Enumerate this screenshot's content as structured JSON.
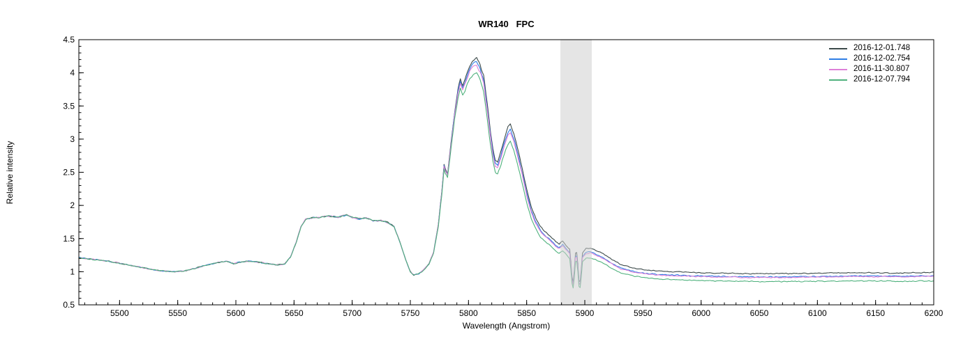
{
  "chart_data": {
    "type": "line",
    "title": "WR140   FPC",
    "xlabel": "Wavelength (Angstrom)",
    "ylabel": "Relative intensity",
    "xlim": [
      5465,
      6200
    ],
    "ylim": [
      0.5,
      4.5
    ],
    "grid": false,
    "legend_position": "top-right",
    "x_ticks": {
      "major_values": [
        5500,
        5550,
        5600,
        5650,
        5700,
        5750,
        5800,
        5850,
        5900,
        5950,
        6000,
        6050,
        6100,
        6150,
        6200
      ],
      "major_labels": [
        "5500",
        "5550",
        "5600",
        "5650",
        "5700",
        "5750",
        "5800",
        "5850",
        "5900",
        "5950",
        "6000",
        "6050",
        "6100",
        "6150",
        "6200"
      ],
      "minor_step": 10
    },
    "y_ticks": {
      "major_values": [
        0.5,
        1,
        1.5,
        2,
        2.5,
        3,
        3.5,
        4,
        4.5
      ],
      "major_labels": [
        "0.5",
        "1",
        "1.5",
        "2",
        "2.5",
        "3",
        "3.5",
        "4",
        "4.5"
      ],
      "minor_step": 0.1
    },
    "shaded_band": {
      "x0": 5879,
      "x1": 5906,
      "color": "rgba(208,208,208,0.55)",
      "note": "telluric Na D region overlay"
    },
    "frame_color": "#000000",
    "background_color": "#ffffff",
    "base_profile": [
      [
        5465,
        1.21
      ],
      [
        5475,
        1.19
      ],
      [
        5490,
        1.16
      ],
      [
        5505,
        1.11
      ],
      [
        5520,
        1.06
      ],
      [
        5532,
        1.02
      ],
      [
        5545,
        1.0
      ],
      [
        5555,
        1.01
      ],
      [
        5565,
        1.05
      ],
      [
        5575,
        1.1
      ],
      [
        5585,
        1.14
      ],
      [
        5592,
        1.16
      ],
      [
        5598,
        1.12
      ],
      [
        5603,
        1.14
      ],
      [
        5610,
        1.16
      ],
      [
        5618,
        1.15
      ],
      [
        5628,
        1.12
      ],
      [
        5636,
        1.1
      ],
      [
        5642,
        1.12
      ],
      [
        5647,
        1.22
      ],
      [
        5652,
        1.45
      ],
      [
        5656,
        1.68
      ],
      [
        5660,
        1.79
      ],
      [
        5665,
        1.81
      ],
      [
        5672,
        1.82
      ],
      [
        5680,
        1.84
      ],
      [
        5688,
        1.82
      ],
      [
        5695,
        1.86
      ],
      [
        5700,
        1.82
      ],
      [
        5706,
        1.8
      ],
      [
        5712,
        1.81
      ],
      [
        5718,
        1.77
      ],
      [
        5725,
        1.77
      ],
      [
        5731,
        1.74
      ],
      [
        5736,
        1.68
      ],
      [
        5741,
        1.45
      ],
      [
        5746,
        1.18
      ],
      [
        5750,
        1.0
      ],
      [
        5753,
        0.95
      ],
      [
        5757,
        0.97
      ],
      [
        5761,
        1.02
      ],
      [
        5766,
        1.12
      ],
      [
        5770,
        1.3
      ],
      [
        5774,
        1.7
      ],
      [
        5777,
        2.2
      ],
      [
        5779,
        2.62
      ],
      [
        5780,
        2.55
      ],
      [
        5782,
        2.48
      ],
      [
        5785,
        2.95
      ],
      [
        5788,
        3.4
      ],
      [
        5791,
        3.75
      ],
      [
        5793,
        3.9
      ],
      [
        5795,
        3.8
      ],
      [
        5798,
        3.95
      ],
      [
        5801,
        4.1
      ],
      [
        5804,
        4.18
      ],
      [
        5807,
        4.22
      ],
      [
        5810,
        4.12
      ],
      [
        5813,
        3.95
      ],
      [
        5816,
        3.55
      ],
      [
        5819,
        3.1
      ],
      [
        5821,
        2.85
      ],
      [
        5823,
        2.68
      ],
      [
        5825,
        2.66
      ],
      [
        5828,
        2.82
      ],
      [
        5831,
        3.02
      ],
      [
        5834,
        3.18
      ],
      [
        5836,
        3.22
      ],
      [
        5839,
        3.08
      ],
      [
        5842,
        2.88
      ],
      [
        5846,
        2.58
      ],
      [
        5850,
        2.25
      ],
      [
        5854,
        1.98
      ],
      [
        5858,
        1.8
      ],
      [
        5862,
        1.68
      ],
      [
        5866,
        1.6
      ],
      [
        5871,
        1.53
      ],
      [
        5875,
        1.45
      ],
      [
        5878,
        1.42
      ],
      [
        5881,
        1.47
      ],
      [
        5884,
        1.4
      ],
      [
        5887,
        1.34
      ],
      [
        5888.5,
        1.05
      ],
      [
        5889.5,
        0.79
      ],
      [
        5890.5,
        0.9
      ],
      [
        5892,
        1.28
      ],
      [
        5893.5,
        1.3
      ],
      [
        5894.5,
        0.95
      ],
      [
        5895.5,
        0.78
      ],
      [
        5896.5,
        0.92
      ],
      [
        5898,
        1.28
      ],
      [
        5901,
        1.35
      ],
      [
        5905,
        1.36
      ],
      [
        5909,
        1.33
      ],
      [
        5913,
        1.3
      ],
      [
        5917,
        1.26
      ],
      [
        5921,
        1.21
      ],
      [
        5926,
        1.16
      ],
      [
        5931,
        1.11
      ],
      [
        5937,
        1.08
      ],
      [
        5944,
        1.05
      ],
      [
        5952,
        1.03
      ],
      [
        5962,
        1.01
      ],
      [
        5975,
        1.0
      ],
      [
        5990,
        0.99
      ],
      [
        6010,
        0.98
      ],
      [
        6030,
        0.975
      ],
      [
        6050,
        0.97
      ],
      [
        6070,
        0.97
      ],
      [
        6090,
        0.975
      ],
      [
        6110,
        0.98
      ],
      [
        6130,
        0.985
      ],
      [
        6150,
        0.985
      ],
      [
        6170,
        0.98
      ],
      [
        6200,
        0.99
      ]
    ],
    "series": [
      {
        "name": "2016-12-01.748",
        "color": "#3c4a4a",
        "multiplier": [
          [
            5465,
            1
          ],
          [
            5760,
            1
          ],
          [
            6200,
            1
          ]
        ]
      },
      {
        "name": "2016-12-02.754",
        "color": "#2e7de5",
        "multiplier": [
          [
            5465,
            1
          ],
          [
            5760,
            1
          ],
          [
            5800,
            0.99
          ],
          [
            5840,
            0.975
          ],
          [
            5880,
            0.96
          ],
          [
            5920,
            0.95
          ],
          [
            6200,
            0.95
          ]
        ]
      },
      {
        "name": "2016-11-30.807",
        "color": "#de7fd8",
        "multiplier": [
          [
            5465,
            1
          ],
          [
            5760,
            1
          ],
          [
            5800,
            0.98
          ],
          [
            5840,
            0.96
          ],
          [
            5880,
            0.95
          ],
          [
            5920,
            0.94
          ],
          [
            6200,
            0.94
          ]
        ]
      },
      {
        "name": "2016-12-07.794",
        "color": "#4fb17d",
        "multiplier": [
          [
            5465,
            1
          ],
          [
            5755,
            1
          ],
          [
            5800,
            0.955
          ],
          [
            5840,
            0.915
          ],
          [
            5880,
            0.9
          ],
          [
            5920,
            0.885
          ],
          [
            6200,
            0.87
          ]
        ]
      }
    ]
  }
}
